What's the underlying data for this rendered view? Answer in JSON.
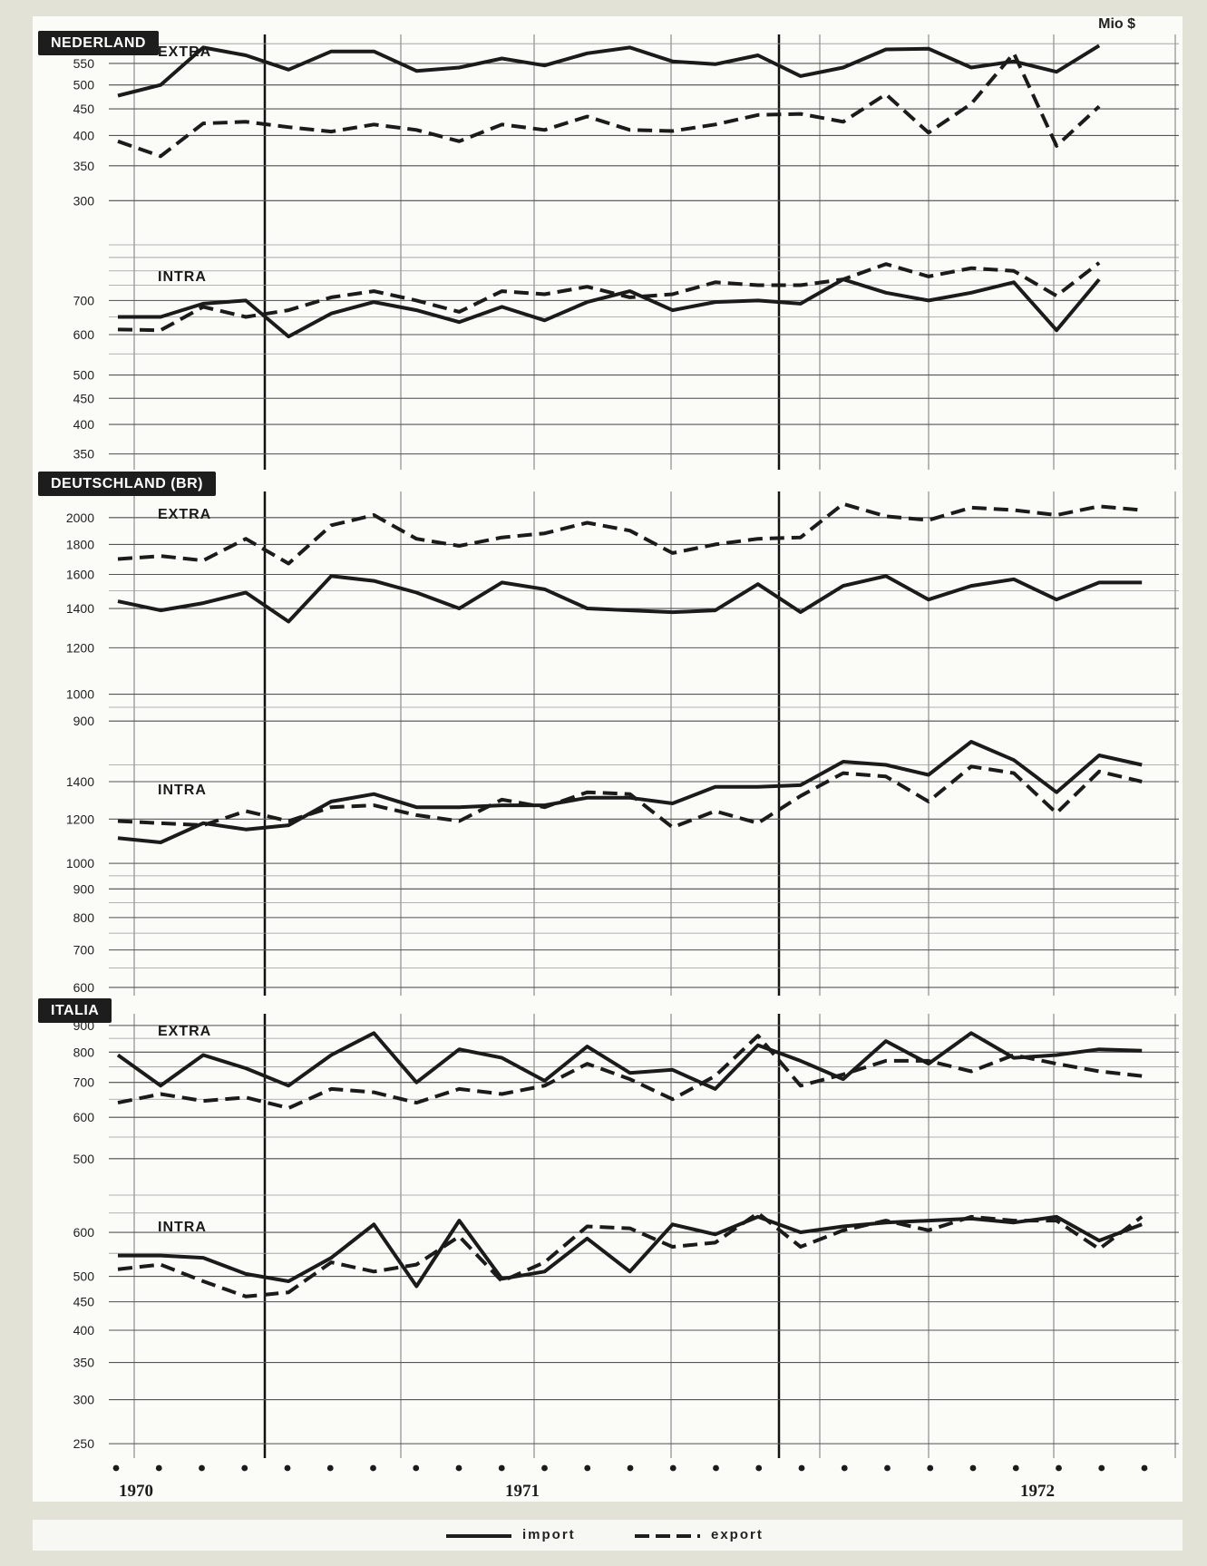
{
  "unit_label": "Mio $",
  "legend": {
    "import_label": "import",
    "export_label": "export"
  },
  "chart_data": [
    {
      "type": "line",
      "scale": "log",
      "country": "NEDERLAND",
      "panel": "EXTRA",
      "ticks": [
        300,
        350,
        400,
        450,
        500,
        550
      ],
      "ylim": [
        275,
        620
      ],
      "series": [
        {
          "name": "import",
          "style": "solid",
          "values": [
            477,
            500,
            590,
            570,
            535,
            580,
            580,
            532,
            540,
            562,
            545,
            575,
            590,
            555,
            548,
            570,
            520,
            540,
            585,
            587,
            540,
            555,
            530,
            595
          ]
        },
        {
          "name": "export",
          "style": "dashed",
          "values": [
            390,
            365,
            422,
            425,
            415,
            407,
            420,
            410,
            390,
            420,
            410,
            435,
            410,
            408,
            420,
            438,
            440,
            425,
            480,
            405,
            460,
            575,
            382,
            455
          ]
        }
      ]
    },
    {
      "type": "line",
      "scale": "log",
      "country": "NEDERLAND",
      "panel": "INTRA",
      "ticks": [
        350,
        400,
        450,
        500,
        600,
        700
      ],
      "ylim": [
        330,
        900
      ],
      "series": [
        {
          "name": "import",
          "style": "solid",
          "values": [
            650,
            650,
            690,
            700,
            595,
            660,
            695,
            670,
            635,
            680,
            640,
            695,
            730,
            670,
            695,
            700,
            690,
            770,
            725,
            700,
            725,
            760,
            612,
            770
          ]
        },
        {
          "name": "export",
          "style": "dashed",
          "values": [
            614,
            612,
            680,
            650,
            670,
            710,
            730,
            700,
            665,
            730,
            720,
            745,
            710,
            720,
            760,
            750,
            750,
            770,
            825,
            780,
            810,
            800,
            715,
            830
          ]
        }
      ]
    },
    {
      "type": "line",
      "scale": "log",
      "country": "DEUTSCHLAND (BR)",
      "panel": "EXTRA",
      "ticks": [
        900,
        1000,
        1200,
        1400,
        1600,
        1800,
        2000
      ],
      "ylim": [
        860,
        2200
      ],
      "series": [
        {
          "name": "import",
          "style": "solid",
          "values": [
            1440,
            1390,
            1430,
            1490,
            1330,
            1590,
            1560,
            1490,
            1400,
            1550,
            1510,
            1400,
            1390,
            1380,
            1390,
            1540,
            1380,
            1530,
            1590,
            1450,
            1530,
            1570,
            1450,
            1550,
            1550
          ]
        },
        {
          "name": "export",
          "style": "dashed",
          "values": [
            1700,
            1720,
            1690,
            1840,
            1670,
            1940,
            2020,
            1840,
            1790,
            1850,
            1880,
            1960,
            1900,
            1740,
            1800,
            1840,
            1850,
            2110,
            2010,
            1980,
            2080,
            2060,
            2020,
            2090,
            2060
          ]
        }
      ]
    },
    {
      "type": "line",
      "scale": "log",
      "country": "DEUTSCHLAND (BR)",
      "panel": "INTRA",
      "ticks": [
        600,
        700,
        800,
        900,
        1000,
        1200,
        1400
      ],
      "ylim": [
        580,
        1650
      ],
      "series": [
        {
          "name": "import",
          "style": "solid",
          "values": [
            1110,
            1090,
            1180,
            1150,
            1170,
            1290,
            1330,
            1260,
            1260,
            1270,
            1270,
            1310,
            1310,
            1280,
            1370,
            1370,
            1380,
            1520,
            1500,
            1440,
            1650,
            1530,
            1340,
            1560,
            1500
          ]
        },
        {
          "name": "export",
          "style": "dashed",
          "values": [
            1190,
            1180,
            1170,
            1240,
            1190,
            1260,
            1270,
            1220,
            1190,
            1300,
            1260,
            1340,
            1330,
            1160,
            1240,
            1180,
            1320,
            1450,
            1430,
            1290,
            1490,
            1450,
            1230,
            1460,
            1400
          ]
        }
      ]
    },
    {
      "type": "line",
      "scale": "log",
      "country": "ITALIA",
      "panel": "EXTRA",
      "ticks": [
        500,
        600,
        700,
        800,
        900
      ],
      "ylim": [
        480,
        940
      ],
      "series": [
        {
          "name": "import",
          "style": "solid",
          "values": [
            790,
            690,
            790,
            745,
            690,
            790,
            870,
            700,
            810,
            780,
            705,
            820,
            730,
            740,
            680,
            825,
            770,
            710,
            840,
            760,
            870,
            780,
            790,
            810,
            805
          ]
        },
        {
          "name": "export",
          "style": "dashed",
          "values": [
            640,
            665,
            645,
            655,
            625,
            680,
            670,
            640,
            680,
            665,
            690,
            760,
            710,
            650,
            720,
            860,
            690,
            725,
            770,
            770,
            735,
            790,
            760,
            735,
            720
          ]
        }
      ]
    },
    {
      "type": "line",
      "scale": "log",
      "country": "ITALIA",
      "panel": "INTRA",
      "ticks": [
        250,
        300,
        350,
        400,
        450,
        500,
        600
      ],
      "ylim": [
        240,
        700
      ],
      "series": [
        {
          "name": "import",
          "style": "solid",
          "values": [
            545,
            545,
            540,
            505,
            490,
            540,
            620,
            480,
            630,
            495,
            510,
            585,
            510,
            620,
            595,
            640,
            600,
            615,
            625,
            630,
            635,
            625,
            640,
            580,
            620
          ]
        },
        {
          "name": "export",
          "style": "dashed",
          "values": [
            515,
            525,
            490,
            460,
            468,
            530,
            510,
            525,
            590,
            490,
            530,
            615,
            610,
            565,
            575,
            650,
            565,
            605,
            630,
            605,
            640,
            630,
            630,
            560,
            640
          ]
        }
      ]
    }
  ],
  "x_axis": {
    "year_labels": [
      "1970",
      "1971",
      "1972"
    ]
  }
}
